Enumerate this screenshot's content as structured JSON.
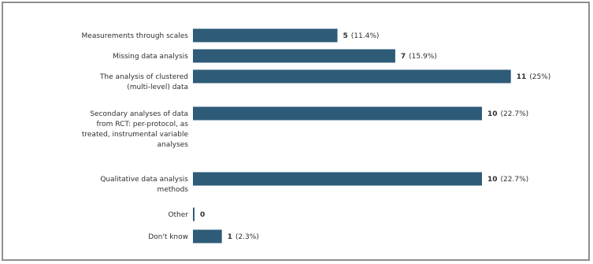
{
  "chart_data": {
    "type": "bar",
    "orientation": "horizontal",
    "title": "",
    "xlabel": "",
    "ylabel": "",
    "bar_color": "#2e5b78",
    "categories": [
      "Measurements through scales",
      "Missing data analysis",
      "The analysis of clustered (multi-level) data",
      "Secondary analyses of data from RCT: per-protocol, as treated, instrumental variable analyses",
      "Qualitative data analysis methods",
      "Other",
      "Don't know"
    ],
    "category_lines": [
      [
        "Measurements through scales"
      ],
      [
        "Missing data analysis"
      ],
      [
        "The analysis of clustered",
        "(multi-level) data"
      ],
      [
        "Secondary analyses of data",
        "from RCT: per-protocol, as",
        "treated, instrumental variable",
        "analyses"
      ],
      [
        "Qualitative data analysis",
        "methods"
      ],
      [
        "Other"
      ],
      [
        "Don't know"
      ]
    ],
    "values": [
      5,
      7,
      11,
      10,
      10,
      0,
      1
    ],
    "percent_labels": [
      "(11.4%)",
      "(15.9%)",
      "(25%)",
      "(22.7%)",
      "(22.7%)",
      "",
      "(2.3%)"
    ],
    "xlim": [
      0,
      11
    ],
    "grid": false,
    "legend": "none"
  }
}
